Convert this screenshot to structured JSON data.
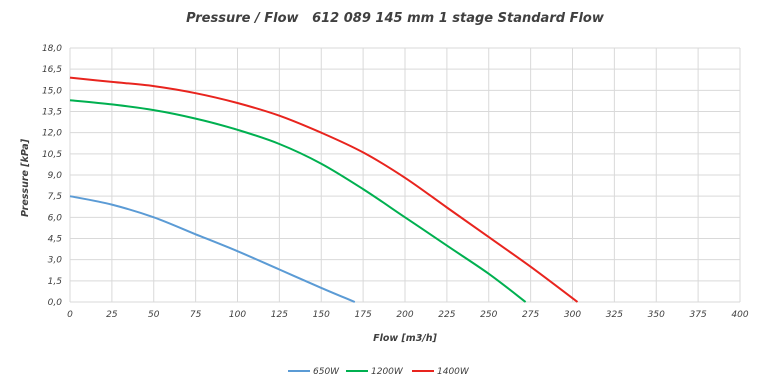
{
  "chart_data": {
    "type": "line",
    "title": "Pressure / Flow   612 089 145 mm 1 stage Standard Flow",
    "xlabel": "Flow [m3/h]",
    "ylabel": "Pressure [kPa]",
    "xlim": [
      0,
      400
    ],
    "ylim": [
      0,
      18
    ],
    "xticks": [
      "0",
      "25",
      "50",
      "75",
      "100",
      "125",
      "150",
      "175",
      "200",
      "225",
      "250",
      "275",
      "300",
      "325",
      "350",
      "375",
      "400"
    ],
    "yticks": [
      "0,0",
      "1,5",
      "3,0",
      "4,5",
      "6,0",
      "7,5",
      "9,0",
      "10,5",
      "12,0",
      "13,5",
      "15,0",
      "16,5",
      "18,0"
    ],
    "grid": true,
    "legend_position": "bottom",
    "series": [
      {
        "name": "650W",
        "color": "#5b9bd5",
        "x": [
          0,
          25,
          50,
          75,
          100,
          125,
          150,
          170
        ],
        "y": [
          7.5,
          6.9,
          6.0,
          4.8,
          3.6,
          2.3,
          1.0,
          0.0
        ]
      },
      {
        "name": "1200W",
        "color": "#00b050",
        "x": [
          0,
          25,
          50,
          75,
          100,
          125,
          150,
          175,
          200,
          225,
          250,
          272
        ],
        "y": [
          14.3,
          14.0,
          13.6,
          13.0,
          12.2,
          11.2,
          9.8,
          8.0,
          6.0,
          4.0,
          2.0,
          0.0
        ]
      },
      {
        "name": "1400W",
        "color": "#e8241e",
        "x": [
          0,
          25,
          50,
          75,
          100,
          125,
          150,
          175,
          200,
          225,
          250,
          275,
          303
        ],
        "y": [
          15.9,
          15.6,
          15.3,
          14.8,
          14.1,
          13.2,
          12.0,
          10.6,
          8.8,
          6.7,
          4.6,
          2.5,
          0.0
        ]
      }
    ]
  }
}
